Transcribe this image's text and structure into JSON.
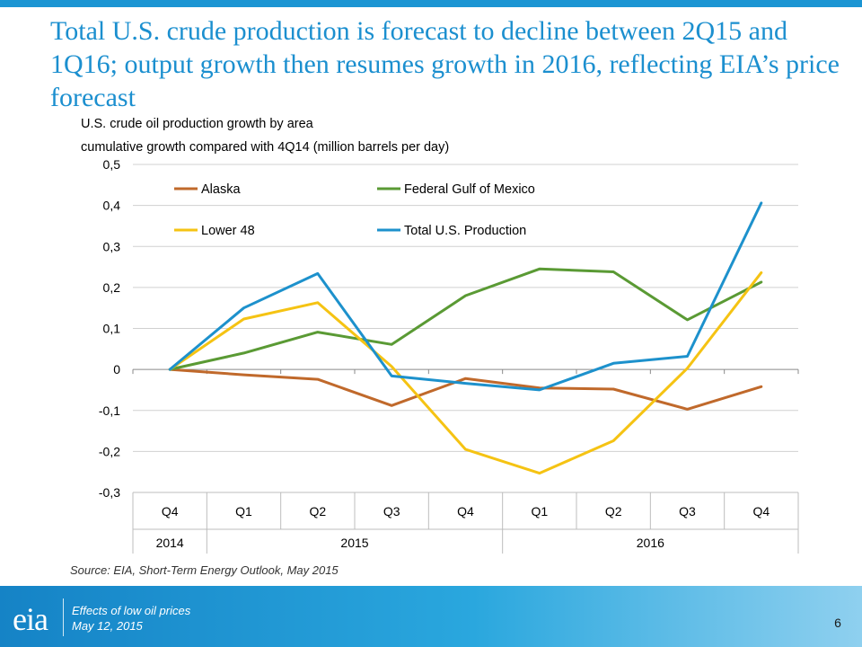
{
  "slide": {
    "title": "Total U.S. crude production is forecast to decline between 2Q15 and 1Q16; output growth then resumes growth in 2016, reflecting EIA’s price forecast",
    "subtitle_line1": "U.S. crude oil production growth by area",
    "subtitle_line2": "cumulative growth compared with 4Q14  (million barrels per day)",
    "source": "Source: EIA, Short-Term Energy Outlook, May 2015"
  },
  "footer": {
    "logo": "eia",
    "line1": "Effects of low oil prices",
    "line2": "May 12, 2015",
    "page_number": "6"
  },
  "chart_data": {
    "type": "line",
    "categories": [
      "Q4",
      "Q1",
      "Q2",
      "Q3",
      "Q4",
      "Q1",
      "Q2",
      "Q3",
      "Q4"
    ],
    "year_groups": [
      {
        "label": "2014",
        "count": 1
      },
      {
        "label": "2015",
        "count": 4
      },
      {
        "label": "2016",
        "count": 4
      }
    ],
    "ylim": [
      -0.3,
      0.5
    ],
    "yticks": [
      "0,5",
      "0,4",
      "0,3",
      "0,2",
      "0,1",
      "0",
      "-0,1",
      "-0,2",
      "-0,3"
    ],
    "ytick_values": [
      0.5,
      0.4,
      0.3,
      0.2,
      0.1,
      0,
      -0.1,
      -0.2,
      -0.3
    ],
    "grid": true,
    "legend_position": "top",
    "series": [
      {
        "name": "Alaska",
        "color": "#c0692b",
        "values": [
          0,
          -0.013,
          -0.024,
          -0.088,
          -0.022,
          -0.045,
          -0.048,
          -0.097,
          -0.042
        ]
      },
      {
        "name": "Federal Gulf of Mexico",
        "color": "#5a9a34",
        "values": [
          0,
          0.04,
          0.091,
          0.061,
          0.18,
          0.245,
          0.238,
          0.121,
          0.213
        ]
      },
      {
        "name": "Lower 48",
        "color": "#f5c313",
        "values": [
          0,
          0.123,
          0.163,
          0.007,
          -0.195,
          -0.253,
          -0.174,
          0.003,
          0.236
        ]
      },
      {
        "name": "Total U.S. Production",
        "color": "#1d91cc",
        "values": [
          0,
          0.15,
          0.234,
          -0.016,
          -0.034,
          -0.05,
          0.015,
          0.032,
          0.406
        ]
      }
    ]
  }
}
